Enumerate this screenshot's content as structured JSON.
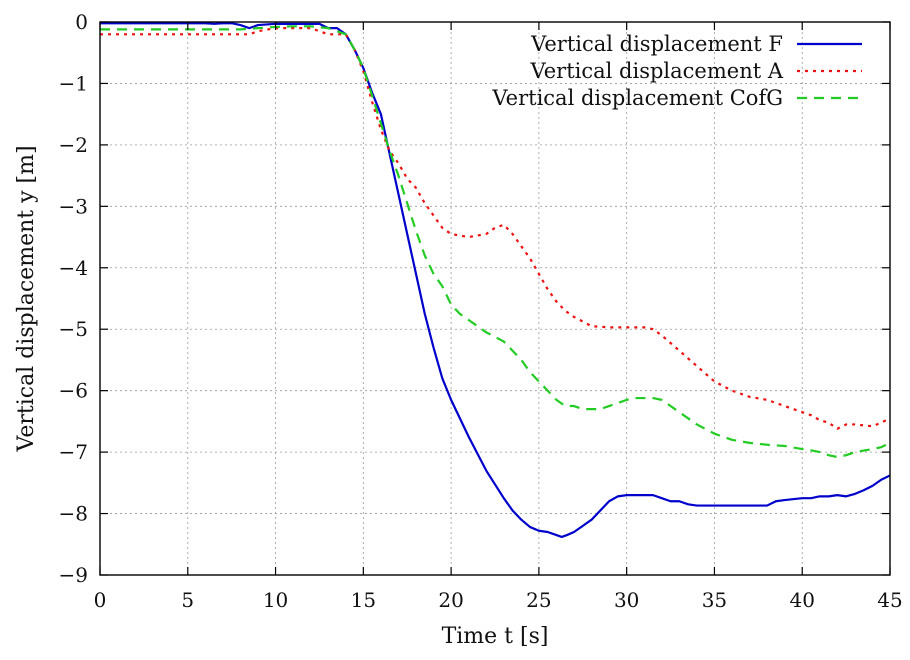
{
  "chart_data": {
    "type": "line",
    "title": "",
    "xlabel": "Time t [s]",
    "ylabel": "Vertical displacement y [m]",
    "xlim": [
      0,
      45
    ],
    "ylim": [
      -9,
      0
    ],
    "xticks": [
      "0",
      "5",
      "10",
      "15",
      "20",
      "25",
      "30",
      "35",
      "40",
      "45"
    ],
    "yticks": [
      "0",
      "−1",
      "−2",
      "−3",
      "−4",
      "−5",
      "−6",
      "−7",
      "−8",
      "−9"
    ],
    "grid": true,
    "legend_position": "top-right",
    "series": [
      {
        "name": "Vertical displacement F",
        "color": "#0000cc",
        "dash": "solid",
        "x": [
          0,
          2,
          4,
          5,
          6,
          6.5,
          7,
          7.5,
          8,
          8.5,
          9,
          10,
          11,
          12,
          12.5,
          13,
          13.5,
          14,
          14.5,
          15,
          15.5,
          16,
          16.5,
          17,
          17.5,
          18,
          18.5,
          19,
          19.5,
          20,
          21,
          22,
          23,
          23.5,
          24,
          24.5,
          25,
          25.5,
          26,
          26.3,
          26.6,
          27,
          27.5,
          28,
          28.5,
          29,
          29.5,
          30,
          31,
          31.5,
          32,
          32.5,
          33,
          33.5,
          34,
          35,
          36,
          37,
          38,
          38.5,
          39,
          40,
          40.5,
          41,
          41.5,
          42,
          42.5,
          43,
          43.5,
          44,
          44.5,
          45
        ],
        "y": [
          -0.02,
          -0.02,
          -0.02,
          -0.02,
          -0.02,
          -0.03,
          -0.02,
          -0.02,
          -0.05,
          -0.1,
          -0.05,
          -0.03,
          -0.03,
          -0.03,
          -0.03,
          -0.1,
          -0.1,
          -0.2,
          -0.45,
          -0.75,
          -1.15,
          -1.5,
          -2.15,
          -2.8,
          -3.45,
          -4.1,
          -4.75,
          -5.3,
          -5.8,
          -6.15,
          -6.75,
          -7.3,
          -7.75,
          -7.95,
          -8.1,
          -8.22,
          -8.28,
          -8.3,
          -8.35,
          -8.38,
          -8.35,
          -8.3,
          -8.2,
          -8.1,
          -7.95,
          -7.8,
          -7.72,
          -7.7,
          -7.7,
          -7.7,
          -7.75,
          -7.8,
          -7.8,
          -7.85,
          -7.87,
          -7.87,
          -7.87,
          -7.87,
          -7.87,
          -7.8,
          -7.78,
          -7.75,
          -7.75,
          -7.72,
          -7.72,
          -7.7,
          -7.72,
          -7.68,
          -7.62,
          -7.55,
          -7.45,
          -7.38
        ]
      },
      {
        "name": "Vertical displacement A",
        "color": "#ee1111",
        "dash": "dotted",
        "x": [
          0,
          2,
          4,
          5,
          6,
          7,
          8,
          8.5,
          9,
          10,
          11,
          12,
          13,
          13.5,
          14,
          14.5,
          15,
          15.5,
          16,
          16.5,
          17,
          17.5,
          18,
          18.5,
          19,
          19.5,
          20,
          21,
          22,
          22.5,
          23,
          23.5,
          24,
          24.5,
          25,
          25.5,
          26,
          26.5,
          27,
          28,
          29,
          30,
          31,
          31.5,
          32,
          33,
          34,
          35,
          36,
          37,
          38,
          39,
          40,
          40.5,
          41,
          41.5,
          42,
          42.5,
          43,
          44,
          44.5,
          45
        ],
        "y": [
          -0.2,
          -0.2,
          -0.2,
          -0.2,
          -0.2,
          -0.2,
          -0.2,
          -0.2,
          -0.15,
          -0.1,
          -0.1,
          -0.1,
          -0.2,
          -0.2,
          -0.2,
          -0.45,
          -0.8,
          -1.3,
          -1.75,
          -2.1,
          -2.3,
          -2.55,
          -2.7,
          -2.95,
          -3.15,
          -3.35,
          -3.45,
          -3.5,
          -3.45,
          -3.35,
          -3.3,
          -3.45,
          -3.65,
          -3.85,
          -4.1,
          -4.35,
          -4.55,
          -4.7,
          -4.8,
          -4.95,
          -4.97,
          -4.97,
          -4.97,
          -5.0,
          -5.1,
          -5.35,
          -5.6,
          -5.85,
          -6.0,
          -6.1,
          -6.15,
          -6.25,
          -6.35,
          -6.4,
          -6.48,
          -6.52,
          -6.62,
          -6.55,
          -6.55,
          -6.58,
          -6.52,
          -6.45
        ]
      },
      {
        "name": "Vertical displacement CofG",
        "color": "#22cc22",
        "dash": "dashed",
        "x": [
          0,
          2,
          4,
          6,
          8,
          9,
          10,
          11,
          12,
          13,
          13.5,
          14,
          14.5,
          15,
          15.5,
          16,
          16.5,
          17,
          17.5,
          18,
          18.5,
          19,
          19.5,
          20,
          20.5,
          21,
          22,
          23,
          23.5,
          24,
          24.5,
          25,
          25.5,
          26,
          26.5,
          27,
          27.5,
          28,
          28.5,
          29,
          29.5,
          30,
          30.5,
          31,
          31.5,
          32,
          32.5,
          33,
          34,
          35,
          36,
          37,
          38,
          39,
          40,
          40.5,
          41,
          41.5,
          42,
          42.5,
          43,
          44,
          44.5,
          45
        ],
        "y": [
          -0.12,
          -0.12,
          -0.12,
          -0.12,
          -0.12,
          -0.1,
          -0.08,
          -0.07,
          -0.07,
          -0.1,
          -0.15,
          -0.2,
          -0.45,
          -0.75,
          -1.2,
          -1.65,
          -2.1,
          -2.5,
          -2.95,
          -3.4,
          -3.8,
          -4.1,
          -4.3,
          -4.6,
          -4.75,
          -4.85,
          -5.05,
          -5.2,
          -5.35,
          -5.5,
          -5.7,
          -5.85,
          -6.0,
          -6.15,
          -6.25,
          -6.25,
          -6.3,
          -6.3,
          -6.3,
          -6.25,
          -6.2,
          -6.15,
          -6.12,
          -6.12,
          -6.12,
          -6.15,
          -6.25,
          -6.35,
          -6.55,
          -6.7,
          -6.8,
          -6.85,
          -6.88,
          -6.9,
          -6.95,
          -6.97,
          -7.0,
          -7.05,
          -7.08,
          -7.05,
          -7.0,
          -6.95,
          -6.92,
          -6.85
        ]
      }
    ]
  }
}
